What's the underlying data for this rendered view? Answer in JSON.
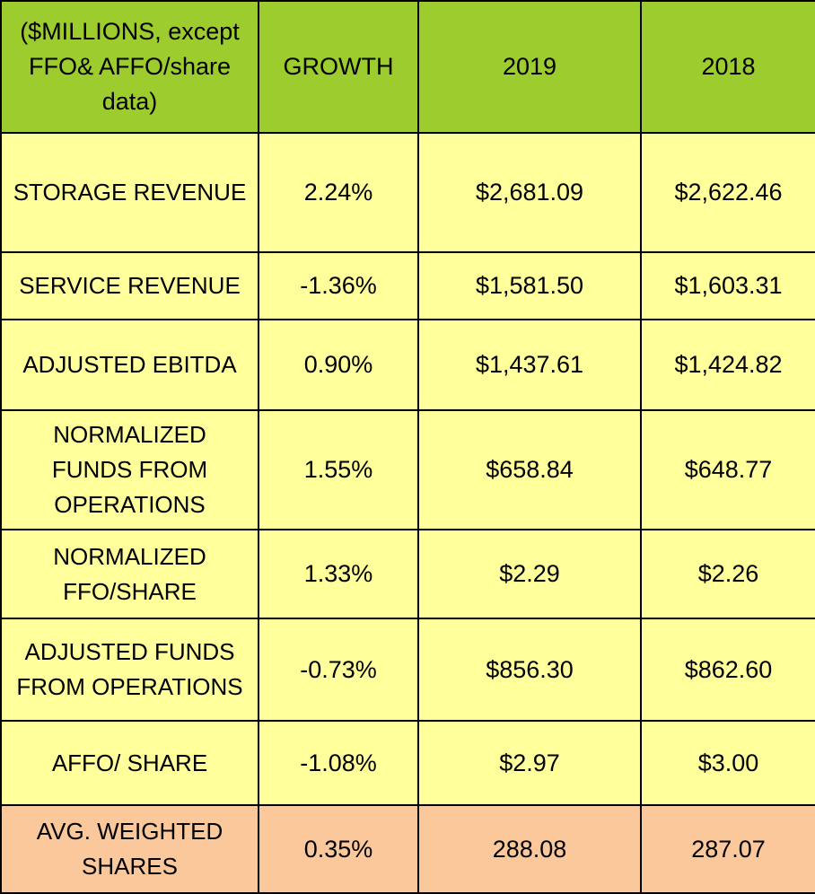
{
  "chart_data": {
    "type": "table",
    "columns": [
      "($MILLIONS, except FFO& AFFO/share data)",
      "GROWTH",
      "2019",
      "2018"
    ],
    "rows": [
      [
        "STORAGE REVENUE",
        "2.24%",
        "$2,681.09",
        "$2,622.46"
      ],
      [
        "SERVICE REVENUE",
        "-1.36%",
        "$1,581.50",
        "$1,603.31"
      ],
      [
        "ADJUSTED EBITDA",
        "0.90%",
        "$1,437.61",
        "$1,424.82"
      ],
      [
        "NORMALIZED FUNDS FROM OPERATIONS",
        "1.55%",
        "$658.84",
        "$648.77"
      ],
      [
        "NORMALIZED FFO/SHARE",
        "1.33%",
        "$2.29",
        "$2.26"
      ],
      [
        "ADJUSTED FUNDS FROM OPERATIONS",
        "-0.73%",
        "$856.30",
        "$862.60"
      ],
      [
        "AFFO/ SHARE",
        "-1.08%",
        "$2.97",
        "$3.00"
      ],
      [
        "AVG. WEIGHTED SHARES",
        "0.35%",
        "288.08",
        "287.07"
      ]
    ],
    "colors": {
      "header": "#9dcc2e",
      "body": "#ffff9c",
      "last_row": "#fbc89b",
      "border": "#000000"
    }
  }
}
